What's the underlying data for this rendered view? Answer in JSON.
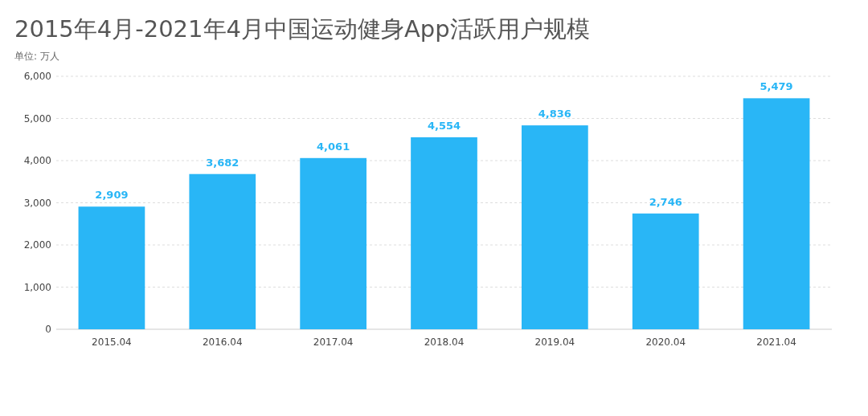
{
  "chart_data": {
    "type": "bar",
    "title": "2015年4月-2021年4月中国运动健身App活跃用户规模",
    "ylabel": "单位: 万人",
    "categories": [
      "2015.04",
      "2016.04",
      "2017.04",
      "2018.04",
      "2019.04",
      "2020.04",
      "2021.04"
    ],
    "values": [
      2909,
      3682,
      4061,
      4554,
      4836,
      2746,
      5479
    ],
    "color": "#29b6f6",
    "ylim": [
      0,
      6000
    ],
    "yticks": [
      {
        "value": 0,
        "label": "0"
      },
      {
        "value": 1000,
        "label": "1,000"
      },
      {
        "value": 2000,
        "label": "2,000"
      },
      {
        "value": 3000,
        "label": "3,000"
      },
      {
        "value": 4000,
        "label": "4,000"
      },
      {
        "value": 5000,
        "label": "5,000"
      },
      {
        "value": 6000,
        "label": "6,000"
      }
    ],
    "value_labels": [
      "2,909",
      "3,682",
      "4,061",
      "4,554",
      "4,836",
      "2,746",
      "5,479"
    ],
    "grid": "y"
  }
}
